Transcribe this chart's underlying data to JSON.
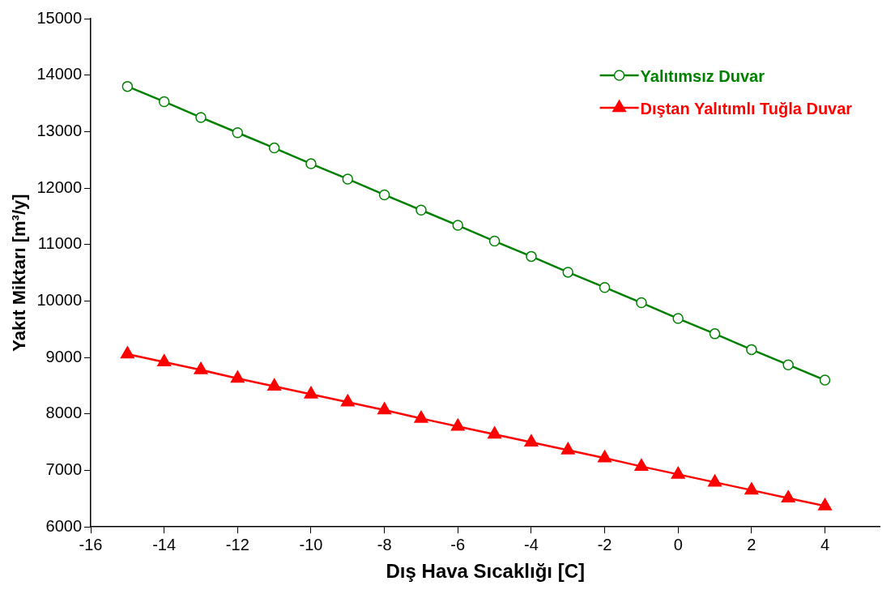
{
  "chart_data": {
    "type": "line",
    "xlabel": "Dış Hava Sıcaklığı [C]",
    "ylabel": "Yakıt Miktarı [m³/y]",
    "x": [
      -15,
      -14,
      -13,
      -12,
      -11,
      -10,
      -9,
      -8,
      -7,
      -6,
      -5,
      -4,
      -3,
      -2,
      -1,
      0,
      1,
      2,
      3,
      4
    ],
    "series": [
      {
        "name": "Yalıtımsız Duvar",
        "color": "#008000",
        "marker": "circle",
        "values": [
          13800,
          13530,
          13250,
          12980,
          12710,
          12430,
          12160,
          11880,
          11610,
          11340,
          11060,
          10790,
          10510,
          10240,
          9970,
          9690,
          9420,
          9140,
          8870,
          8600
        ]
      },
      {
        "name": "Dıştan Yalıtımlı Tuğla Duvar",
        "color": "#ff0000",
        "marker": "triangle",
        "values": [
          9060,
          8920,
          8780,
          8630,
          8490,
          8350,
          8210,
          8070,
          7920,
          7780,
          7640,
          7500,
          7360,
          7220,
          7070,
          6930,
          6790,
          6650,
          6510,
          6370
        ]
      }
    ],
    "xlim": [
      -16,
      5.5
    ],
    "xticks": [
      -16,
      -14,
      -12,
      -10,
      -8,
      -6,
      -4,
      -2,
      0,
      2,
      4
    ],
    "ylim": [
      6000,
      15000
    ],
    "yticks": [
      6000,
      7000,
      8000,
      9000,
      10000,
      11000,
      12000,
      13000,
      14000,
      15000
    ],
    "grid": false,
    "legend": "top right",
    "line_style": "solid"
  }
}
